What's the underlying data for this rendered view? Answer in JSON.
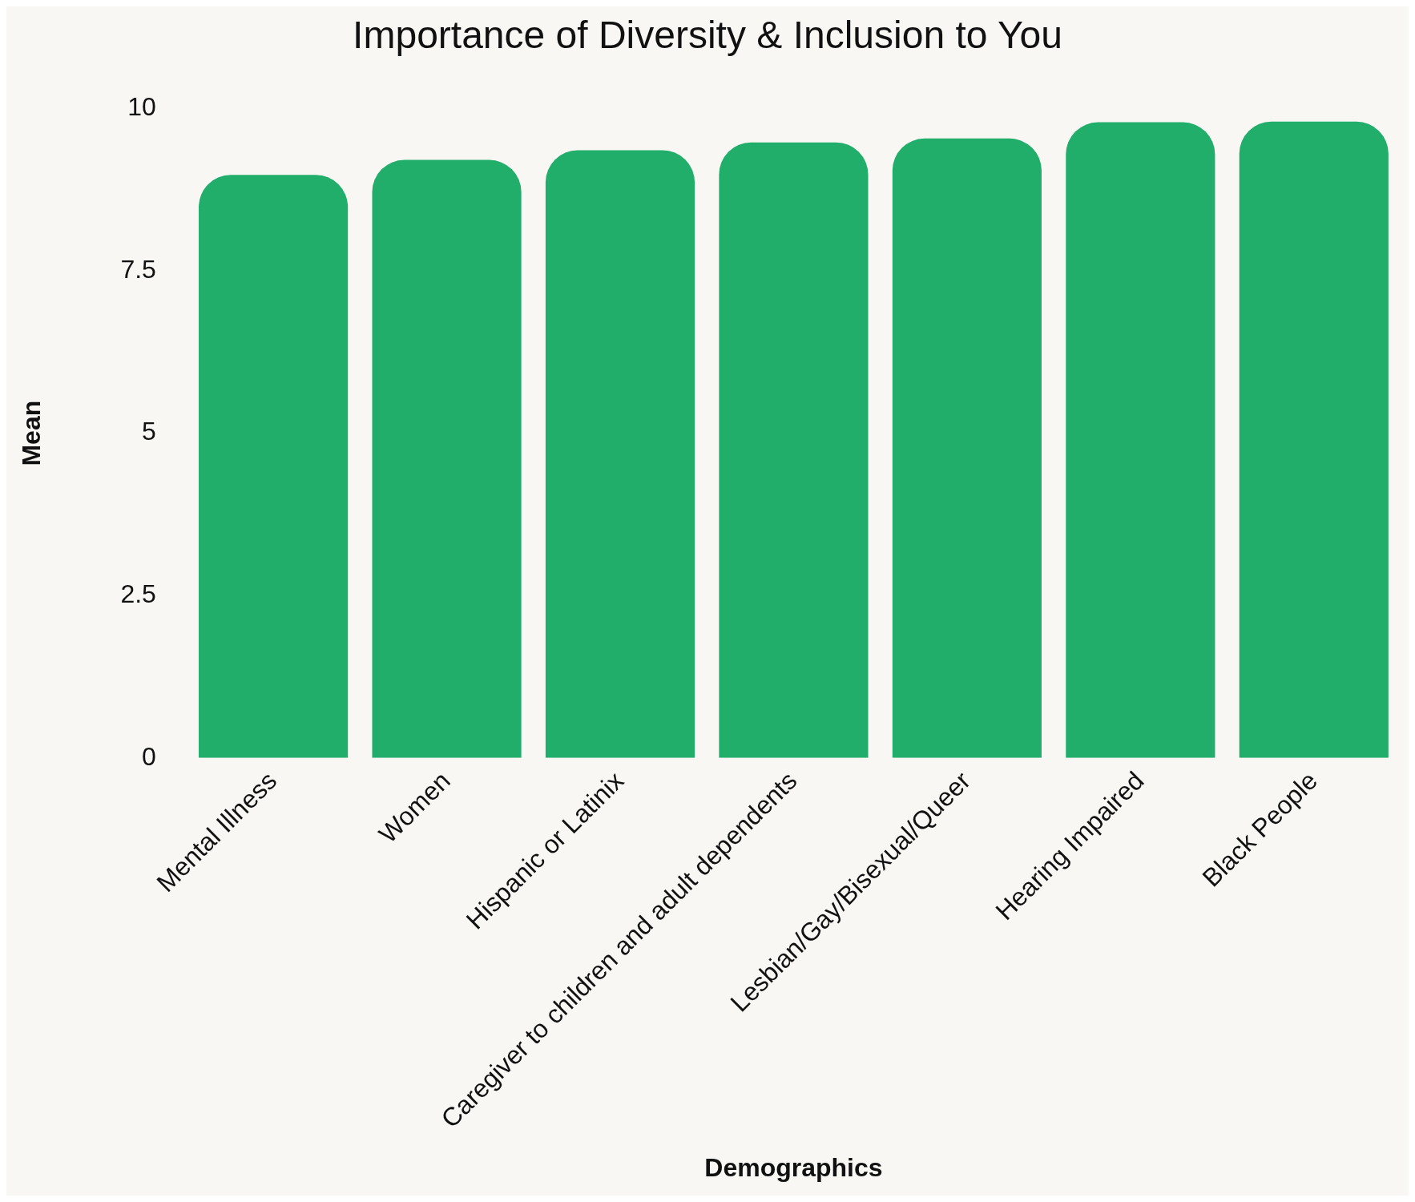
{
  "chart_data": {
    "type": "bar",
    "title": "Importance of Diversity & Inclusion to You",
    "xlabel": "Demographics",
    "ylabel": "Mean",
    "categories": [
      "Mental Illness",
      "Women",
      "Hispanic or Latinix",
      "Caregiver to children and adult dependents",
      "Lesbian/Gay/Bisexual/Queer",
      "Hearing Impaired",
      "Black People"
    ],
    "values": [
      8.98,
      9.21,
      9.36,
      9.48,
      9.54,
      9.79,
      9.8
    ],
    "color": "#20ae6a",
    "ylim": [
      0,
      10
    ],
    "yticks": [
      0,
      {
        "value": 2.5,
        "label": "2.5"
      },
      5,
      {
        "value": 7.5,
        "label": "7.5"
      },
      10
    ],
    "grid": false,
    "legend": false
  }
}
